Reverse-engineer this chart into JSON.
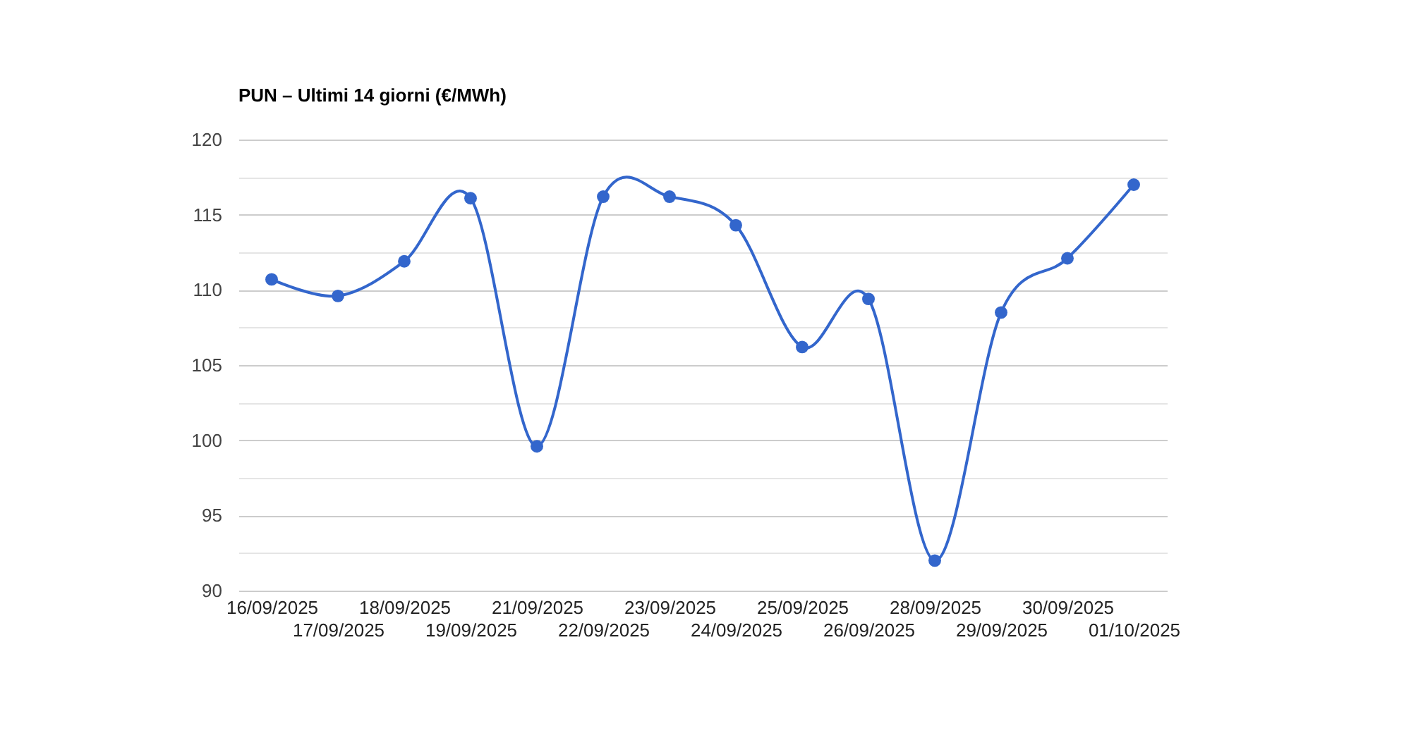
{
  "chart_data": {
    "type": "line",
    "title": "PUN – Ultimi 14 giorni (€/MWh)",
    "categories": [
      "16/09/2025",
      "17/09/2025",
      "18/09/2025",
      "19/09/2025",
      "21/09/2025",
      "22/09/2025",
      "23/09/2025",
      "24/09/2025",
      "25/09/2025",
      "26/09/2025",
      "28/09/2025",
      "29/09/2025",
      "30/09/2025",
      "01/10/2025"
    ],
    "values": [
      110.7,
      109.6,
      111.9,
      116.1,
      99.6,
      116.2,
      116.2,
      114.3,
      106.2,
      109.4,
      92.0,
      108.5,
      112.1,
      117.0
    ],
    "color": "#3366cc",
    "marker": "circle",
    "grid": "y",
    "ylim": [
      90,
      120
    ],
    "yticks": [
      90,
      {
        "value": 92.5,
        "label": null
      },
      95,
      {
        "value": 97.5,
        "label": null
      },
      100,
      {
        "value": 102.5,
        "label": null
      },
      105,
      {
        "value": 107.5,
        "label": null
      },
      110,
      {
        "value": 112.5,
        "label": null
      },
      115,
      {
        "value": 117.5,
        "label": null
      },
      120
    ]
  }
}
